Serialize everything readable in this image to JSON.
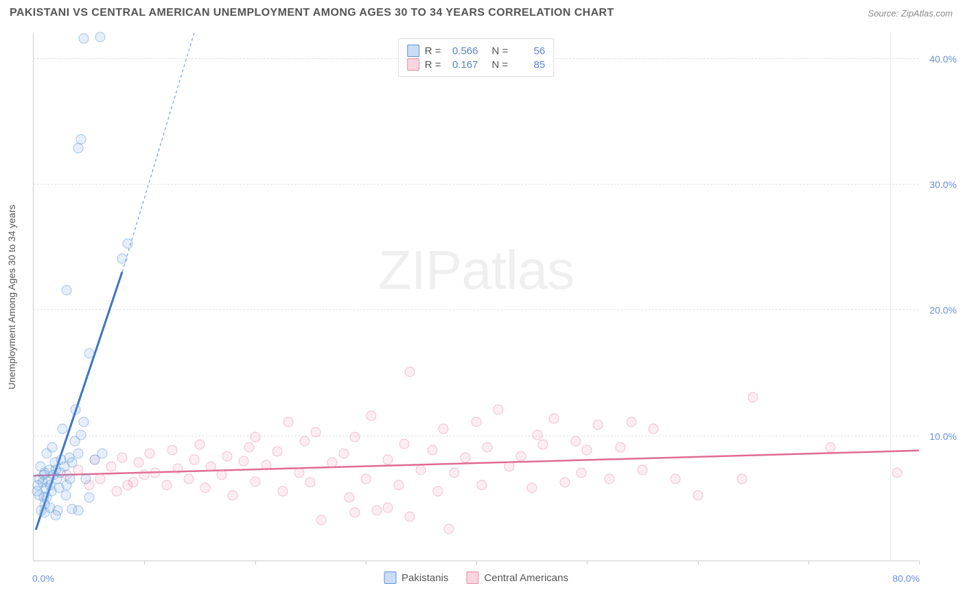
{
  "header": {
    "title": "PAKISTANI VS CENTRAL AMERICAN UNEMPLOYMENT AMONG AGES 30 TO 34 YEARS CORRELATION CHART",
    "source": "Source: ZipAtlas.com"
  },
  "chart": {
    "type": "scatter",
    "y_axis_title": "Unemployment Among Ages 30 to 34 years",
    "watermark_zip": "ZIP",
    "watermark_atlas": "atlas",
    "background_color": "#ffffff",
    "grid_color": "#e0e0e0",
    "axis_color": "#cccccc",
    "colors": {
      "blue_fill": "#78aae6",
      "blue_stroke": "#5a93d6",
      "blue_trend": "#3b74c4",
      "pink_fill": "#f096af",
      "pink_stroke": "#e78aa6",
      "pink_trend": "#e06a92",
      "tick_label": "#6a8fd8"
    },
    "xlim": [
      0,
      80
    ],
    "ylim": [
      0,
      42
    ],
    "y_ticks": [
      {
        "v": 10,
        "label": "10.0%"
      },
      {
        "v": 20,
        "label": "20.0%"
      },
      {
        "v": 30,
        "label": "30.0%"
      },
      {
        "v": 40,
        "label": "40.0%"
      }
    ],
    "x_ticks_at": [
      10,
      20,
      30,
      40,
      50,
      60,
      70,
      80
    ],
    "x_label_min": "0.0%",
    "x_label_max": "80.0%",
    "stat_legend": [
      {
        "color": "blue",
        "r_label": "R =",
        "r": "0.566",
        "n_label": "N =",
        "n": "56"
      },
      {
        "color": "pink",
        "r_label": "R =",
        "r": "0.167",
        "n_label": "N =",
        "n": "85"
      }
    ],
    "series_legend": [
      {
        "color": "blue",
        "label": "Pakistanis"
      },
      {
        "color": "pink",
        "label": "Central Americans"
      }
    ],
    "trend_lines": {
      "blue_solid": {
        "x1": 0.2,
        "y1": 2.5,
        "x2": 8,
        "y2": 23
      },
      "blue_dashed": {
        "x1": 8,
        "y1": 23,
        "x2": 14.5,
        "y2": 42
      },
      "pink": {
        "x1": 0,
        "y1": 6.8,
        "x2": 80,
        "y2": 8.8
      }
    },
    "points_blue": [
      {
        "x": 0.5,
        "y": 6.5
      },
      {
        "x": 0.8,
        "y": 6.2
      },
      {
        "x": 1.0,
        "y": 7.0
      },
      {
        "x": 1.2,
        "y": 5.0
      },
      {
        "x": 0.6,
        "y": 7.5
      },
      {
        "x": 1.5,
        "y": 6.0
      },
      {
        "x": 1.0,
        "y": 4.5
      },
      {
        "x": 1.8,
        "y": 6.8
      },
      {
        "x": 2.0,
        "y": 7.2
      },
      {
        "x": 0.3,
        "y": 5.5
      },
      {
        "x": 2.3,
        "y": 5.8
      },
      {
        "x": 2.5,
        "y": 8.0
      },
      {
        "x": 1.2,
        "y": 8.5
      },
      {
        "x": 1.5,
        "y": 4.2
      },
      {
        "x": 0.9,
        "y": 5.0
      },
      {
        "x": 2.8,
        "y": 7.5
      },
      {
        "x": 3.0,
        "y": 6.0
      },
      {
        "x": 3.2,
        "y": 8.2
      },
      {
        "x": 1.7,
        "y": 9.0
      },
      {
        "x": 3.5,
        "y": 7.8
      },
      {
        "x": 3.7,
        "y": 9.5
      },
      {
        "x": 2.2,
        "y": 4.0
      },
      {
        "x": 4.0,
        "y": 8.5
      },
      {
        "x": 4.3,
        "y": 10.0
      },
      {
        "x": 1.0,
        "y": 3.8
      },
      {
        "x": 4.5,
        "y": 11.0
      },
      {
        "x": 3.8,
        "y": 12.0
      },
      {
        "x": 5.5,
        "y": 8.0
      },
      {
        "x": 2.6,
        "y": 10.5
      },
      {
        "x": 6.2,
        "y": 8.5
      },
      {
        "x": 5.0,
        "y": 16.5
      },
      {
        "x": 3.0,
        "y": 21.5
      },
      {
        "x": 8.0,
        "y": 24.0
      },
      {
        "x": 8.5,
        "y": 25.2
      },
      {
        "x": 4.0,
        "y": 32.8
      },
      {
        "x": 4.3,
        "y": 33.5
      },
      {
        "x": 4.5,
        "y": 41.5
      },
      {
        "x": 6.0,
        "y": 41.6
      },
      {
        "x": 0.7,
        "y": 4.0
      },
      {
        "x": 1.3,
        "y": 6.3
      },
      {
        "x": 0.5,
        "y": 5.2
      },
      {
        "x": 2.1,
        "y": 6.5
      },
      {
        "x": 1.6,
        "y": 5.5
      },
      {
        "x": 0.9,
        "y": 6.8
      },
      {
        "x": 2.4,
        "y": 7.0
      },
      {
        "x": 1.1,
        "y": 5.8
      },
      {
        "x": 3.3,
        "y": 6.5
      },
      {
        "x": 0.4,
        "y": 6.0
      },
      {
        "x": 4.7,
        "y": 6.5
      },
      {
        "x": 2.9,
        "y": 5.2
      },
      {
        "x": 1.9,
        "y": 7.8
      },
      {
        "x": 3.5,
        "y": 4.1
      },
      {
        "x": 4.0,
        "y": 4.0
      },
      {
        "x": 2.0,
        "y": 3.6
      },
      {
        "x": 5.0,
        "y": 5.0
      },
      {
        "x": 1.4,
        "y": 7.2
      }
    ],
    "points_pink": [
      {
        "x": 3,
        "y": 6.8
      },
      {
        "x": 4,
        "y": 7.2
      },
      {
        "x": 5,
        "y": 6.0
      },
      {
        "x": 5.5,
        "y": 8.0
      },
      {
        "x": 6,
        "y": 6.5
      },
      {
        "x": 7,
        "y": 7.5
      },
      {
        "x": 7.5,
        "y": 5.5
      },
      {
        "x": 8,
        "y": 8.2
      },
      {
        "x": 9,
        "y": 6.2
      },
      {
        "x": 9.5,
        "y": 7.8
      },
      {
        "x": 10,
        "y": 6.8
      },
      {
        "x": 10.5,
        "y": 8.5
      },
      {
        "x": 11,
        "y": 7.0
      },
      {
        "x": 12,
        "y": 6.0
      },
      {
        "x": 12.5,
        "y": 8.8
      },
      {
        "x": 13,
        "y": 7.3
      },
      {
        "x": 14,
        "y": 6.5
      },
      {
        "x": 14.5,
        "y": 8.0
      },
      {
        "x": 15,
        "y": 9.2
      },
      {
        "x": 15.5,
        "y": 5.8
      },
      {
        "x": 16,
        "y": 7.5
      },
      {
        "x": 17,
        "y": 6.8
      },
      {
        "x": 17.5,
        "y": 8.3
      },
      {
        "x": 18,
        "y": 5.2
      },
      {
        "x": 19,
        "y": 7.9
      },
      {
        "x": 19.5,
        "y": 9.0
      },
      {
        "x": 20,
        "y": 6.3
      },
      {
        "x": 21,
        "y": 7.6
      },
      {
        "x": 22,
        "y": 8.7
      },
      {
        "x": 22.5,
        "y": 5.5
      },
      {
        "x": 23,
        "y": 11.0
      },
      {
        "x": 24,
        "y": 7.0
      },
      {
        "x": 24.5,
        "y": 9.5
      },
      {
        "x": 25,
        "y": 6.2
      },
      {
        "x": 25.5,
        "y": 10.2
      },
      {
        "x": 26,
        "y": 3.2
      },
      {
        "x": 27,
        "y": 7.8
      },
      {
        "x": 28,
        "y": 8.5
      },
      {
        "x": 28.5,
        "y": 5.0
      },
      {
        "x": 29,
        "y": 9.8
      },
      {
        "x": 30,
        "y": 6.5
      },
      {
        "x": 30.5,
        "y": 11.5
      },
      {
        "x": 31,
        "y": 4.0
      },
      {
        "x": 32,
        "y": 8.0
      },
      {
        "x": 33,
        "y": 6.0
      },
      {
        "x": 33.5,
        "y": 9.3
      },
      {
        "x": 34,
        "y": 15.0
      },
      {
        "x": 35,
        "y": 7.2
      },
      {
        "x": 36,
        "y": 8.8
      },
      {
        "x": 36.5,
        "y": 5.5
      },
      {
        "x": 37,
        "y": 10.5
      },
      {
        "x": 37.5,
        "y": 2.5
      },
      {
        "x": 38,
        "y": 7.0
      },
      {
        "x": 39,
        "y": 8.2
      },
      {
        "x": 40,
        "y": 11.0
      },
      {
        "x": 40.5,
        "y": 6.0
      },
      {
        "x": 41,
        "y": 9.0
      },
      {
        "x": 42,
        "y": 12.0
      },
      {
        "x": 43,
        "y": 7.5
      },
      {
        "x": 44,
        "y": 8.3
      },
      {
        "x": 45,
        "y": 5.8
      },
      {
        "x": 45.5,
        "y": 10.0
      },
      {
        "x": 46,
        "y": 9.2
      },
      {
        "x": 47,
        "y": 11.3
      },
      {
        "x": 48,
        "y": 6.2
      },
      {
        "x": 49,
        "y": 9.5
      },
      {
        "x": 49.5,
        "y": 7.0
      },
      {
        "x": 50,
        "y": 8.8
      },
      {
        "x": 51,
        "y": 10.8
      },
      {
        "x": 52,
        "y": 6.5
      },
      {
        "x": 53,
        "y": 9.0
      },
      {
        "x": 54,
        "y": 11.0
      },
      {
        "x": 55,
        "y": 7.2
      },
      {
        "x": 56,
        "y": 10.5
      },
      {
        "x": 58,
        "y": 6.5
      },
      {
        "x": 60,
        "y": 5.2
      },
      {
        "x": 64,
        "y": 6.5
      },
      {
        "x": 65,
        "y": 13.0
      },
      {
        "x": 72,
        "y": 9.0
      },
      {
        "x": 78,
        "y": 7.0
      },
      {
        "x": 34,
        "y": 3.5
      },
      {
        "x": 32,
        "y": 4.2
      },
      {
        "x": 29,
        "y": 3.8
      },
      {
        "x": 20,
        "y": 9.8
      },
      {
        "x": 8.5,
        "y": 6.0
      }
    ]
  }
}
